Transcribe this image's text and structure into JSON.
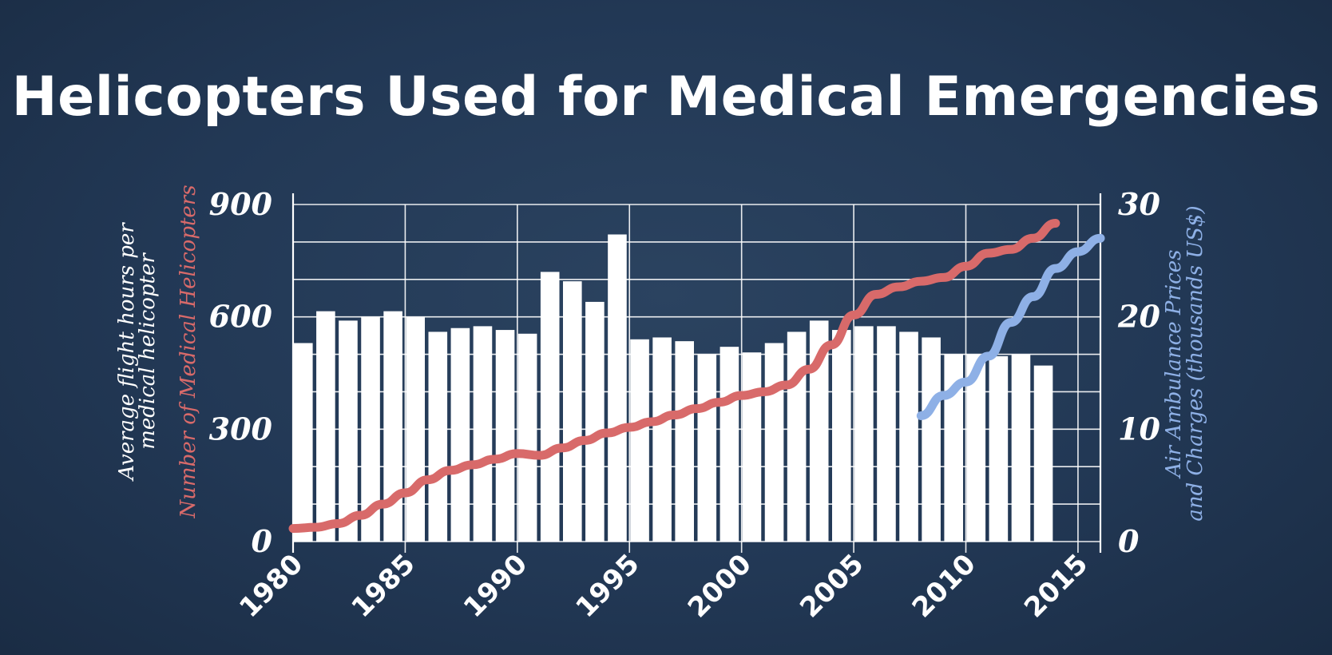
{
  "chart_data": {
    "type": "bar",
    "title": "Helicopters Used for Medical Emergencies",
    "x_ticks": [
      "1980",
      "1985",
      "1990",
      "1995",
      "2000",
      "2005",
      "2010",
      "2015"
    ],
    "xlim": [
      1980,
      2016
    ],
    "left_axis": {
      "ylim": [
        0,
        900
      ],
      "ticks": [
        "0",
        "300",
        "600",
        "900"
      ],
      "label_line1": "Average flight hours per",
      "label_line2": "medical helicopter",
      "label_red": "Number of Medical Helicopters"
    },
    "right_axis": {
      "ylim": [
        0,
        30
      ],
      "ticks": [
        "0",
        "10",
        "20",
        "30"
      ],
      "label_line1": "Air Ambulance Prices",
      "label_line2": "and Charges (thousands US$)"
    },
    "bars": {
      "years": [
        1980,
        1981,
        1982,
        1983,
        1984,
        1985,
        1986,
        1987,
        1988,
        1989,
        1990,
        1991,
        1992,
        1993,
        1994,
        1995,
        1996,
        1997,
        1998,
        1999,
        2000,
        2001,
        2002,
        2003,
        2004,
        2005,
        2006,
        2007,
        2008,
        2009,
        2010,
        2011,
        2012,
        2013
      ],
      "values": [
        530,
        615,
        590,
        600,
        615,
        600,
        560,
        570,
        575,
        565,
        555,
        720,
        695,
        640,
        820,
        540,
        545,
        535,
        500,
        520,
        505,
        530,
        560,
        590,
        565,
        575,
        575,
        560,
        545,
        500,
        500,
        495,
        500,
        470
      ]
    },
    "series": [
      {
        "axis": "left",
        "color": "#d86a6a",
        "x": [
          1980,
          1981,
          1982,
          1983,
          1984,
          1985,
          1986,
          1987,
          1988,
          1989,
          1990,
          1991,
          1992,
          1993,
          1994,
          1995,
          1996,
          1997,
          1998,
          1999,
          2000,
          2001,
          2002,
          2003,
          2004,
          2005,
          2006,
          2007,
          2008,
          2009,
          2010,
          2011,
          2012,
          2013,
          2014
        ],
        "y": [
          35,
          38,
          48,
          70,
          100,
          130,
          165,
          190,
          205,
          220,
          235,
          230,
          250,
          270,
          290,
          305,
          320,
          338,
          355,
          372,
          390,
          400,
          418,
          460,
          525,
          605,
          660,
          680,
          695,
          705,
          735,
          770,
          780,
          810,
          850
        ]
      },
      {
        "axis": "right",
        "color": "#8eb0e6",
        "x": [
          2008,
          2009,
          2010,
          2011,
          2012,
          2013,
          2014,
          2015,
          2016
        ],
        "y": [
          11.2,
          13.0,
          14.2,
          16.5,
          19.5,
          21.8,
          24.3,
          25.8,
          27.0
        ]
      }
    ],
    "colors": {
      "bars": "#ffffff",
      "grid": "#ffffff",
      "red": "#d86a6a",
      "blue": "#8eb0e6"
    },
    "grid": true
  }
}
